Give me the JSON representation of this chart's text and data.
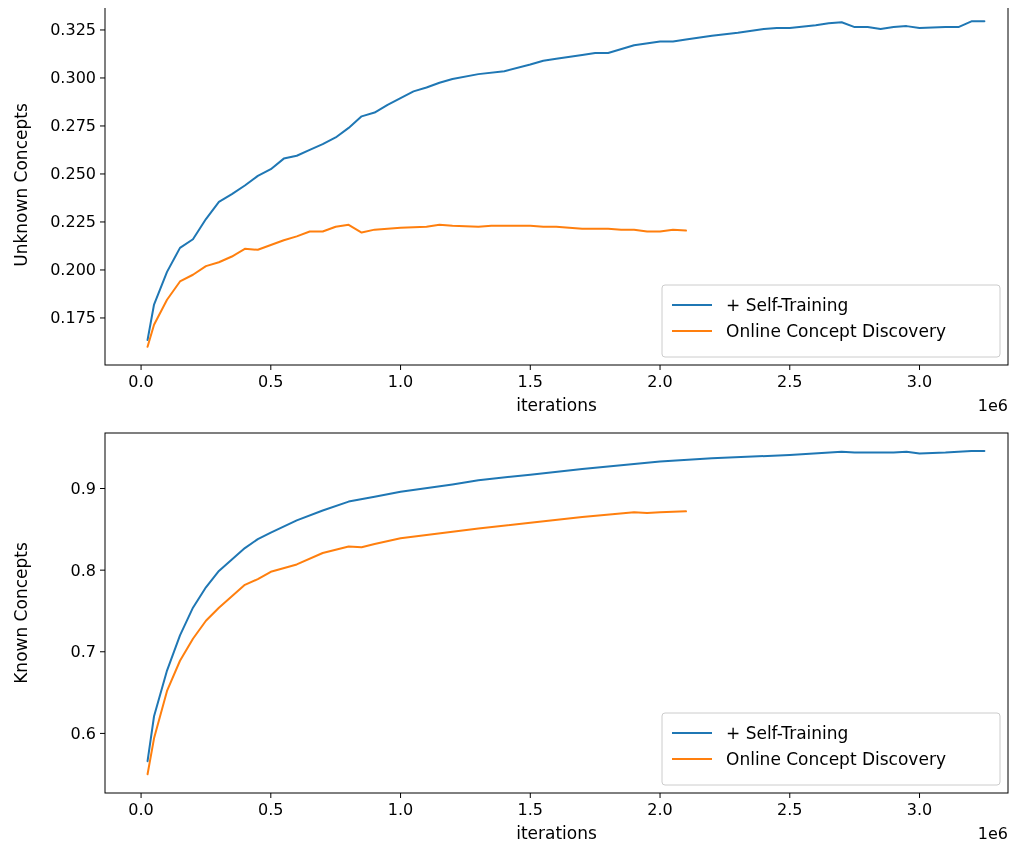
{
  "chart_data": [
    {
      "type": "line",
      "xlabel": "iterations",
      "ylabel": "Unknown Concepts",
      "annotations": [
        "1e6"
      ],
      "legend": "bottom right",
      "xlim": [
        -0.139,
        3.341
      ],
      "ylim": [
        0.1505,
        0.338
      ],
      "xticks": [
        {
          "value": 0,
          "label": "0.0"
        },
        0.5,
        {
          "value": 1,
          "label": "1.0"
        },
        1.5,
        {
          "value": 2,
          "label": "2.0"
        },
        2.5,
        {
          "value": 3,
          "label": "3.0"
        }
      ],
      "yticks": [
        0.175,
        {
          "value": 0.2,
          "label": "0.200"
        },
        0.225,
        {
          "value": 0.25,
          "label": "0.250"
        },
        0.275,
        {
          "value": 0.3,
          "label": "0.300"
        },
        0.325
      ],
      "series": [
        {
          "name": "+ Self-Training",
          "color": "#1f77b4",
          "x": [
            0.025,
            0.05,
            0.1,
            0.15,
            0.2,
            0.25,
            0.3,
            0.35,
            0.4,
            0.45,
            0.5,
            0.55,
            0.6,
            0.65,
            0.7,
            0.75,
            0.8,
            0.85,
            0.9,
            0.95,
            1.0,
            1.05,
            1.1,
            1.15,
            1.2,
            1.3,
            1.4,
            1.5,
            1.55,
            1.6,
            1.7,
            1.75,
            1.8,
            1.9,
            2.0,
            2.05,
            2.1,
            2.2,
            2.3,
            2.4,
            2.45,
            2.5,
            2.6,
            2.65,
            2.7,
            2.75,
            2.8,
            2.85,
            2.9,
            2.95,
            3.0,
            3.1,
            3.15,
            3.2,
            3.25
          ],
          "values": [
            0.1635,
            0.182,
            0.199,
            0.2115,
            0.216,
            0.2265,
            0.2355,
            0.2395,
            0.244,
            0.249,
            0.2525,
            0.258,
            0.2595,
            0.2625,
            0.2655,
            0.269,
            0.274,
            0.28,
            0.282,
            0.286,
            0.2895,
            0.293,
            0.295,
            0.2975,
            0.2995,
            0.302,
            0.3035,
            0.307,
            0.309,
            0.31,
            0.312,
            0.313,
            0.313,
            0.317,
            0.319,
            0.319,
            0.32,
            0.322,
            0.3235,
            0.3255,
            0.326,
            0.326,
            0.3275,
            0.3285,
            0.329,
            0.3265,
            0.3265,
            0.3255,
            0.3265,
            0.327,
            0.326,
            0.3265,
            0.3265,
            0.3295,
            0.3295
          ]
        },
        {
          "name": "Online Concept Discovery",
          "color": "#ff7f0e",
          "x": [
            0.025,
            0.05,
            0.1,
            0.15,
            0.2,
            0.25,
            0.3,
            0.35,
            0.4,
            0.45,
            0.5,
            0.55,
            0.6,
            0.65,
            0.7,
            0.75,
            0.8,
            0.85,
            0.9,
            0.95,
            1.0,
            1.1,
            1.15,
            1.2,
            1.3,
            1.35,
            1.4,
            1.5,
            1.55,
            1.6,
            1.7,
            1.8,
            1.85,
            1.9,
            1.95,
            2.0,
            2.05,
            2.1
          ],
          "values": [
            0.16,
            0.1715,
            0.1845,
            0.194,
            0.1975,
            0.202,
            0.204,
            0.207,
            0.211,
            0.2105,
            0.213,
            0.2155,
            0.2175,
            0.22,
            0.22,
            0.2225,
            0.2235,
            0.2195,
            0.221,
            0.2215,
            0.222,
            0.2225,
            0.2235,
            0.223,
            0.2225,
            0.223,
            0.223,
            0.223,
            0.2225,
            0.2225,
            0.2215,
            0.2215,
            0.221,
            0.221,
            0.22,
            0.22,
            0.221,
            0.2205
          ]
        }
      ]
    },
    {
      "type": "line",
      "xlabel": "iterations",
      "ylabel": "Known Concepts",
      "annotations": [
        "1e6"
      ],
      "legend": "bottom right",
      "xlim": [
        -0.139,
        3.341
      ],
      "ylim": [
        0.527,
        0.968
      ],
      "xticks": [
        {
          "value": 0,
          "label": "0.0"
        },
        0.5,
        {
          "value": 1,
          "label": "1.0"
        },
        1.5,
        {
          "value": 2,
          "label": "2.0"
        },
        2.5,
        {
          "value": 3,
          "label": "3.0"
        }
      ],
      "yticks": [
        0.6,
        0.7,
        0.8,
        0.9
      ],
      "series": [
        {
          "name": "+ Self-Training",
          "color": "#1f77b4",
          "x": [
            0.025,
            0.05,
            0.1,
            0.15,
            0.2,
            0.25,
            0.3,
            0.35,
            0.4,
            0.45,
            0.5,
            0.6,
            0.7,
            0.8,
            0.9,
            1.0,
            1.2,
            1.3,
            1.5,
            1.7,
            1.9,
            2.0,
            2.2,
            2.5,
            2.7,
            2.75,
            2.9,
            2.95,
            3.0,
            3.1,
            3.2,
            3.25
          ],
          "values": [
            0.566,
            0.621,
            0.677,
            0.72,
            0.754,
            0.779,
            0.799,
            0.813,
            0.827,
            0.838,
            0.846,
            0.861,
            0.873,
            0.884,
            0.89,
            0.896,
            0.905,
            0.91,
            0.917,
            0.924,
            0.93,
            0.933,
            0.937,
            0.941,
            0.945,
            0.944,
            0.944,
            0.945,
            0.943,
            0.944,
            0.946,
            0.946
          ]
        },
        {
          "name": "Online Concept Discovery",
          "color": "#ff7f0e",
          "x": [
            0.025,
            0.05,
            0.1,
            0.15,
            0.2,
            0.25,
            0.3,
            0.35,
            0.4,
            0.45,
            0.5,
            0.6,
            0.7,
            0.8,
            0.85,
            0.9,
            1.0,
            1.2,
            1.3,
            1.5,
            1.7,
            1.9,
            1.95,
            2.0,
            2.1
          ],
          "values": [
            0.55,
            0.594,
            0.652,
            0.689,
            0.716,
            0.738,
            0.754,
            0.768,
            0.782,
            0.789,
            0.798,
            0.807,
            0.821,
            0.829,
            0.828,
            0.832,
            0.839,
            0.847,
            0.851,
            0.858,
            0.865,
            0.871,
            0.87,
            0.871,
            0.872
          ]
        }
      ]
    }
  ]
}
